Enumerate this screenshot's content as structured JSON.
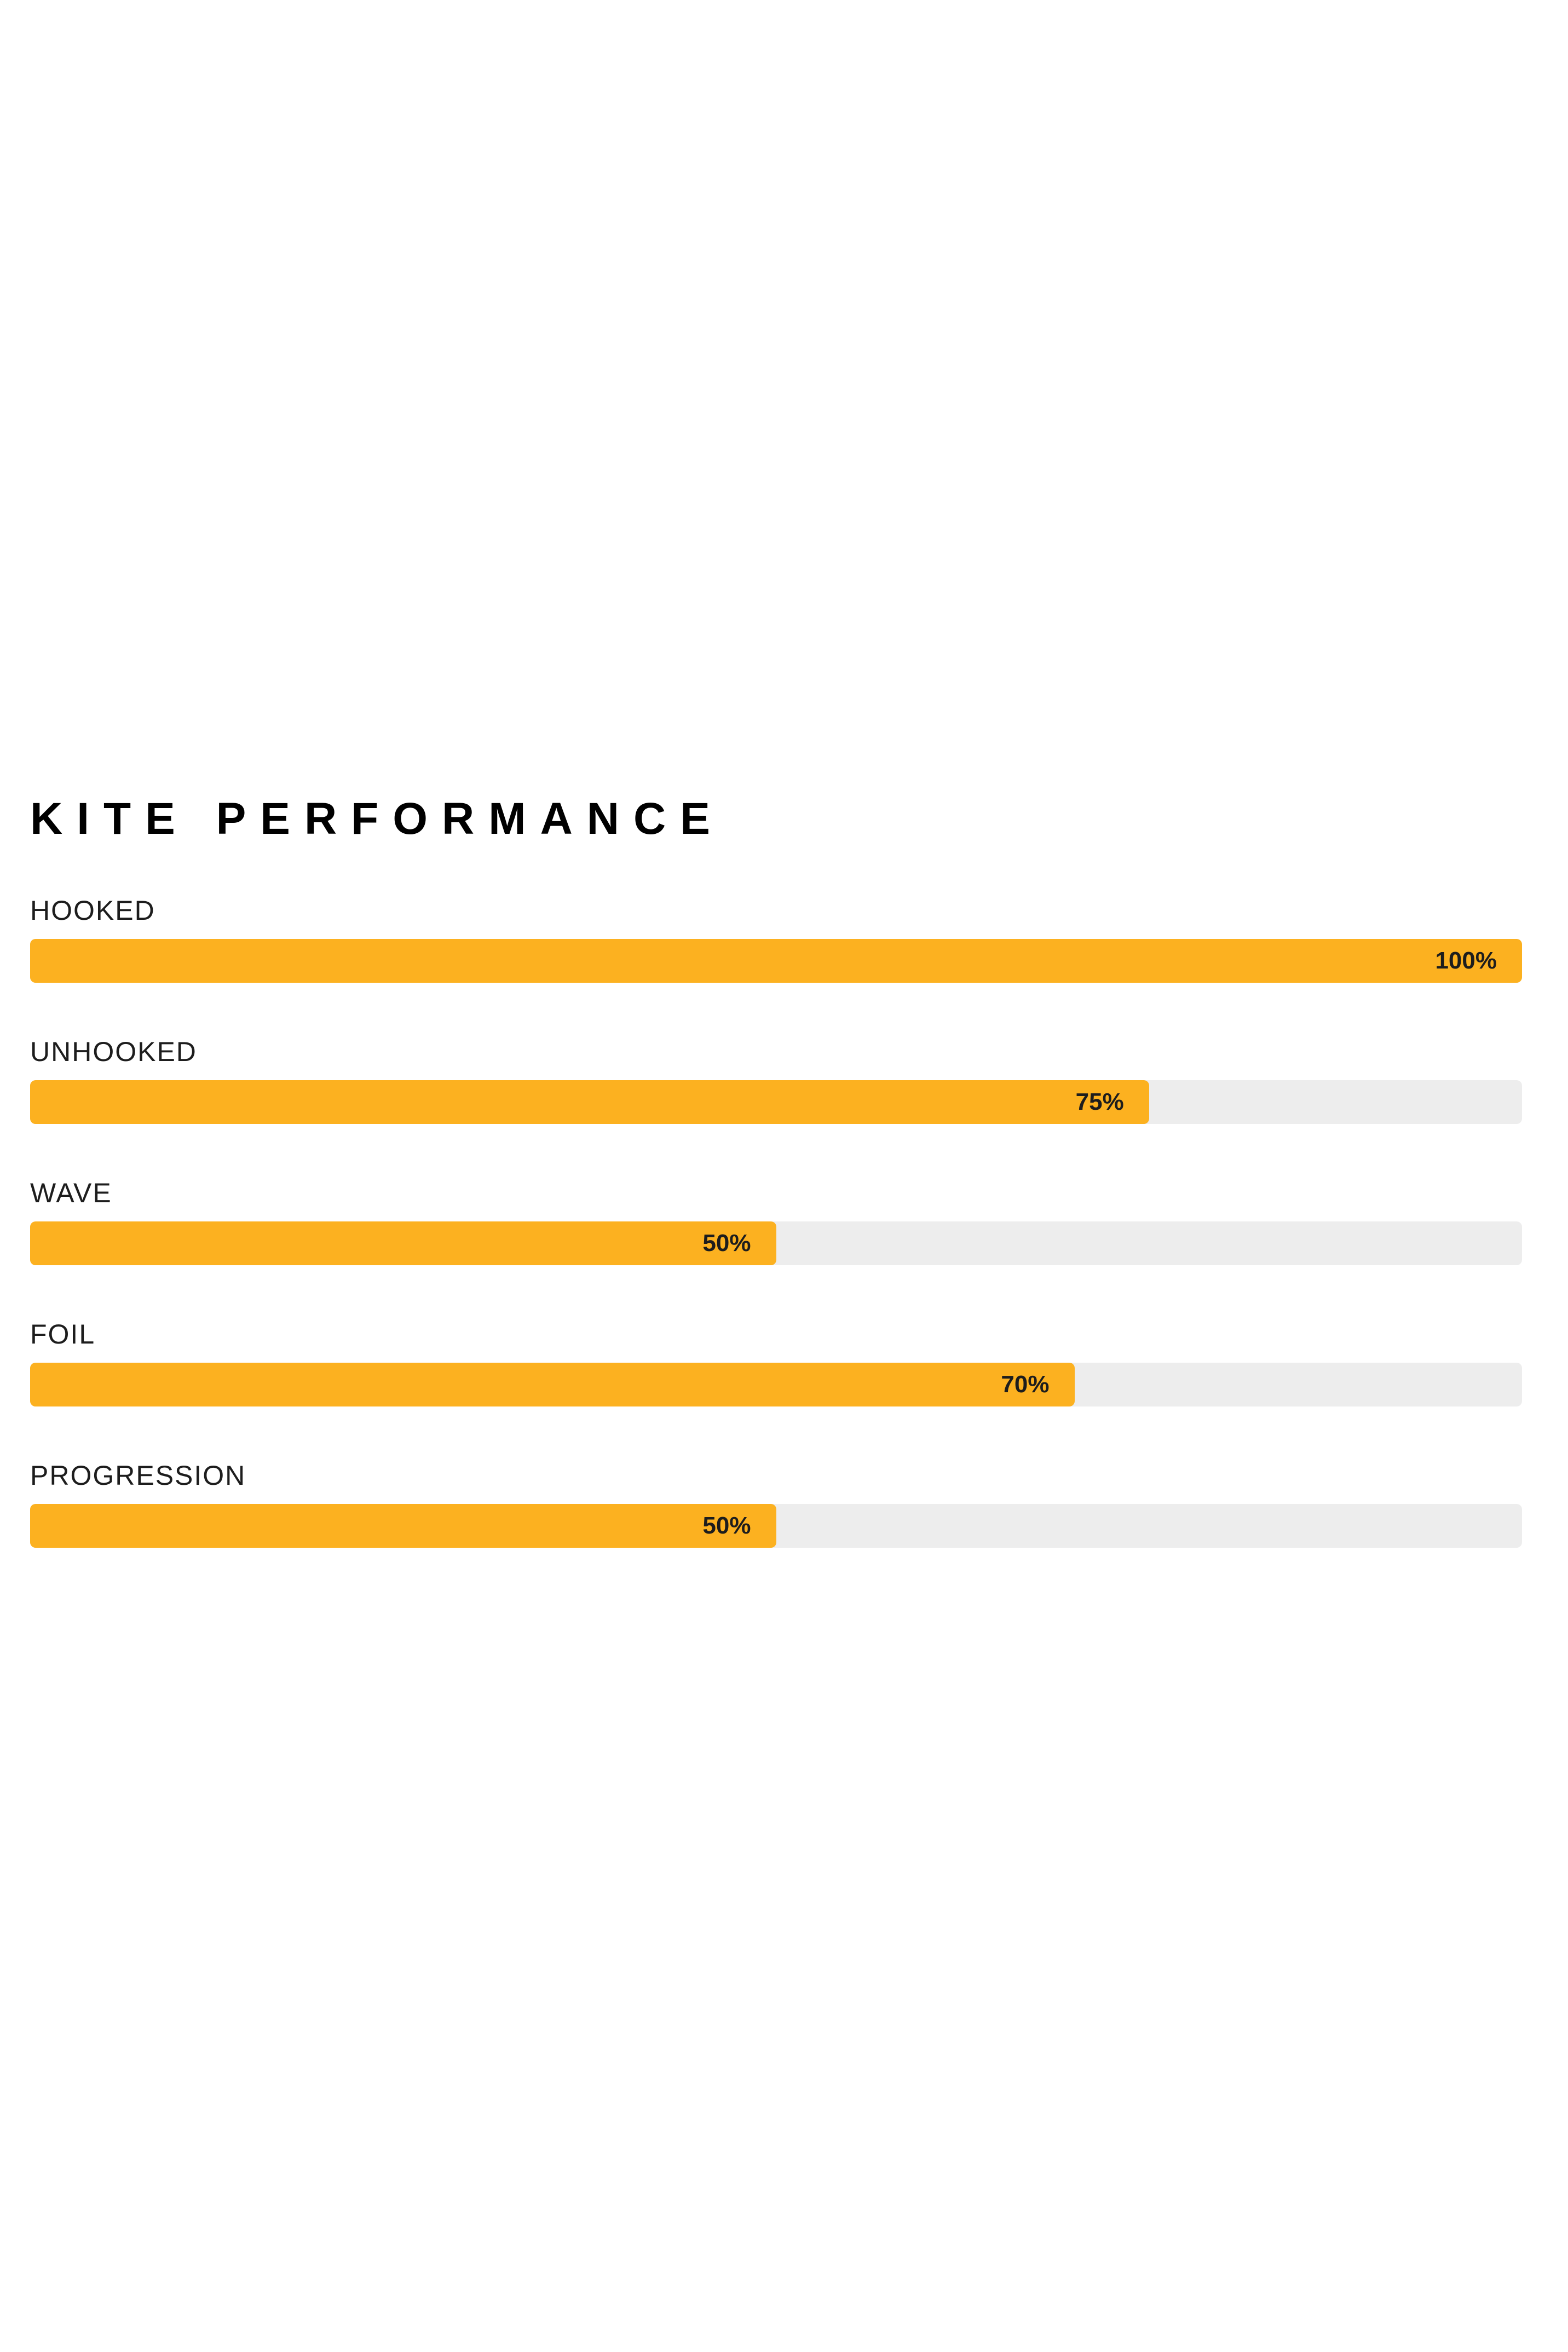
{
  "page": {
    "background": "#ffffff"
  },
  "chart_data": {
    "type": "bar",
    "orientation": "horizontal",
    "title": "KITE PERFORMANCE",
    "categories": [
      "HOOKED",
      "UNHOOKED",
      "WAVE",
      "FOIL",
      "PROGRESSION"
    ],
    "values": [
      100,
      75,
      50,
      70,
      50
    ],
    "value_labels": [
      "100%",
      "75%",
      "50%",
      "70%",
      "50%"
    ],
    "xlim": [
      0,
      100
    ],
    "legend": "none",
    "grid": false,
    "colors": {
      "bar_fill": "#fcb120",
      "bar_track": "#ededed",
      "title_text": "#000000",
      "label_text": "#1d1d1d",
      "value_text": "#1d1d1d"
    }
  }
}
